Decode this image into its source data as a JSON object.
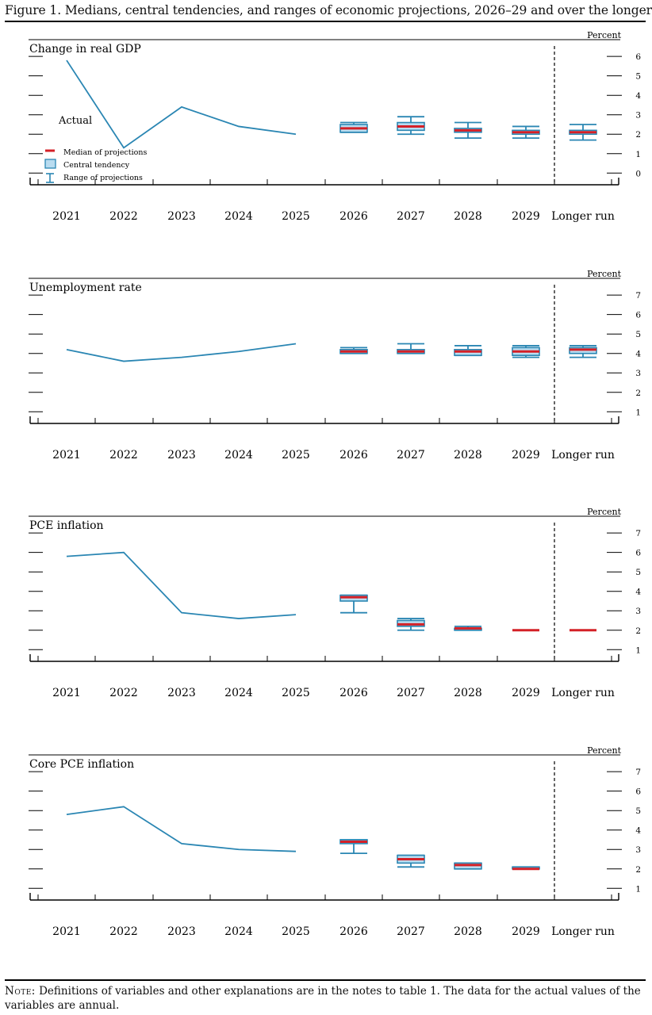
{
  "figure_title": "Figure 1. Medians, central tendencies, and ranges of economic projections, 2026–29 and over the longer run",
  "note_label": "Note:",
  "note_text": "Definitions of variables and other explanations are in the notes to table 1. The data for the actual values of the variables are annual.",
  "colors": {
    "actual_line": "#2a86b3",
    "median": "#d42027",
    "central_fill": "#b9dcf0",
    "box_stroke": "#2a86b3",
    "axis": "#000000"
  },
  "legend": {
    "actual": "Actual",
    "median": "Median of projections",
    "central": "Central tendency",
    "range": "Range of projections"
  },
  "chart_data": [
    {
      "type": "line",
      "title": "Change in real GDP",
      "unit_label": "Percent",
      "categories": [
        "2021",
        "2022",
        "2023",
        "2024",
        "2025",
        "2026",
        "2027",
        "2028",
        "2029",
        "Longer run"
      ],
      "yticks": [
        0,
        1,
        2,
        3,
        4,
        5,
        6
      ],
      "ylim": [
        -0.6,
        6.7
      ],
      "actual": [
        5.8,
        1.3,
        3.4,
        2.4,
        2.0
      ],
      "projections": [
        {
          "category": "2026",
          "median": 2.3,
          "central": [
            2.1,
            2.5
          ],
          "range": [
            2.1,
            2.6
          ]
        },
        {
          "category": "2027",
          "median": 2.4,
          "central": [
            2.2,
            2.6
          ],
          "range": [
            2.0,
            2.9
          ]
        },
        {
          "category": "2028",
          "median": 2.2,
          "central": [
            2.1,
            2.3
          ],
          "range": [
            1.8,
            2.6
          ]
        },
        {
          "category": "2029",
          "median": 2.1,
          "central": [
            2.0,
            2.2
          ],
          "range": [
            1.8,
            2.4
          ]
        },
        {
          "category": "Longer run",
          "median": 2.1,
          "central": [
            2.0,
            2.2
          ],
          "range": [
            1.7,
            2.5
          ]
        }
      ],
      "legend": true
    },
    {
      "type": "line",
      "title": "Unemployment rate",
      "unit_label": "Percent",
      "categories": [
        "2021",
        "2022",
        "2023",
        "2024",
        "2025",
        "2026",
        "2027",
        "2028",
        "2029",
        "Longer run"
      ],
      "yticks": [
        1,
        2,
        3,
        4,
        5,
        6,
        7
      ],
      "ylim": [
        0.4,
        7.7
      ],
      "actual": [
        4.2,
        3.6,
        3.8,
        4.1,
        4.5
      ],
      "projections": [
        {
          "category": "2026",
          "median": 4.1,
          "central": [
            4.0,
            4.2
          ],
          "range": [
            4.0,
            4.3
          ]
        },
        {
          "category": "2027",
          "median": 4.1,
          "central": [
            4.0,
            4.2
          ],
          "range": [
            4.0,
            4.5
          ]
        },
        {
          "category": "2028",
          "median": 4.1,
          "central": [
            3.9,
            4.2
          ],
          "range": [
            3.9,
            4.4
          ]
        },
        {
          "category": "2029",
          "median": 4.1,
          "central": [
            3.9,
            4.3
          ],
          "range": [
            3.8,
            4.4
          ]
        },
        {
          "category": "Longer run",
          "median": 4.2,
          "central": [
            4.0,
            4.3
          ],
          "range": [
            3.8,
            4.4
          ]
        }
      ],
      "legend": false
    },
    {
      "type": "line",
      "title": "PCE inflation",
      "unit_label": "Percent",
      "categories": [
        "2021",
        "2022",
        "2023",
        "2024",
        "2025",
        "2026",
        "2027",
        "2028",
        "2029",
        "Longer run"
      ],
      "yticks": [
        1,
        2,
        3,
        4,
        5,
        6,
        7
      ],
      "ylim": [
        0.4,
        7.7
      ],
      "actual": [
        5.8,
        6.0,
        2.9,
        2.6,
        2.8
      ],
      "projections": [
        {
          "category": "2026",
          "median": 3.7,
          "central": [
            3.5,
            3.8
          ],
          "range": [
            2.9,
            3.8
          ]
        },
        {
          "category": "2027",
          "median": 2.3,
          "central": [
            2.2,
            2.5
          ],
          "range": [
            2.0,
            2.6
          ]
        },
        {
          "category": "2028",
          "median": 2.1,
          "central": [
            2.0,
            2.1
          ],
          "range": [
            2.0,
            2.2
          ]
        },
        {
          "category": "2029",
          "median": 2.0,
          "central": [
            2.0,
            2.0
          ],
          "range": [
            2.0,
            2.0
          ]
        },
        {
          "category": "Longer run",
          "median": 2.0,
          "central": [
            2.0,
            2.0
          ],
          "range": [
            2.0,
            2.0
          ]
        }
      ],
      "legend": false
    },
    {
      "type": "line",
      "title": "Core PCE inflation",
      "unit_label": "Percent",
      "categories": [
        "2021",
        "2022",
        "2023",
        "2024",
        "2025",
        "2026",
        "2027",
        "2028",
        "2029",
        "Longer run"
      ],
      "yticks": [
        1,
        2,
        3,
        4,
        5,
        6,
        7
      ],
      "ylim": [
        0.4,
        7.7
      ],
      "actual": [
        4.8,
        5.2,
        3.3,
        3.0,
        2.9
      ],
      "projections": [
        {
          "category": "2026",
          "median": 3.4,
          "central": [
            3.3,
            3.5
          ],
          "range": [
            2.8,
            3.5
          ]
        },
        {
          "category": "2027",
          "median": 2.5,
          "central": [
            2.3,
            2.7
          ],
          "range": [
            2.1,
            2.7
          ]
        },
        {
          "category": "2028",
          "median": 2.2,
          "central": [
            2.0,
            2.3
          ],
          "range": [
            2.0,
            2.3
          ]
        },
        {
          "category": "2029",
          "median": 2.0,
          "central": [
            2.0,
            2.1
          ],
          "range": [
            2.0,
            2.1
          ]
        }
      ],
      "legend": false
    }
  ]
}
